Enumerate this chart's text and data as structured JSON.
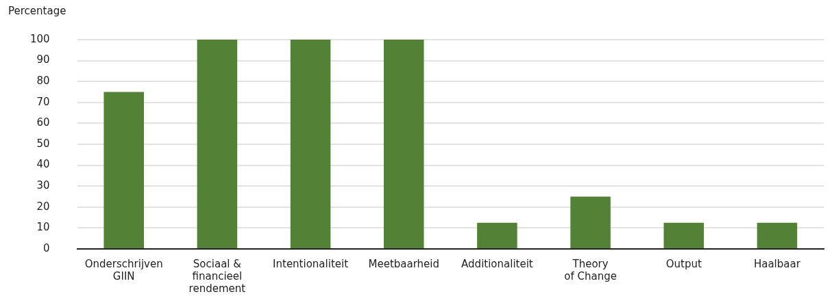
{
  "chart_data": {
    "type": "bar",
    "ylabel": "Percentage",
    "categories": [
      "Onderschrijven\nGIIN",
      "Sociaal &\nfinancieel\nrendement",
      "Intentionaliteit",
      "Meetbaarheid",
      "Additionaliteit",
      "Theory\nof Change",
      "Output",
      "Haalbaar"
    ],
    "values": [
      75,
      100,
      100,
      100,
      12.5,
      25,
      12.5,
      12.5
    ],
    "color": "#538135",
    "ylim": [
      0,
      100
    ],
    "yticks": [
      0,
      10,
      20,
      30,
      40,
      50,
      60,
      70,
      80,
      90,
      100
    ],
    "grid": "y",
    "legend": false
  }
}
